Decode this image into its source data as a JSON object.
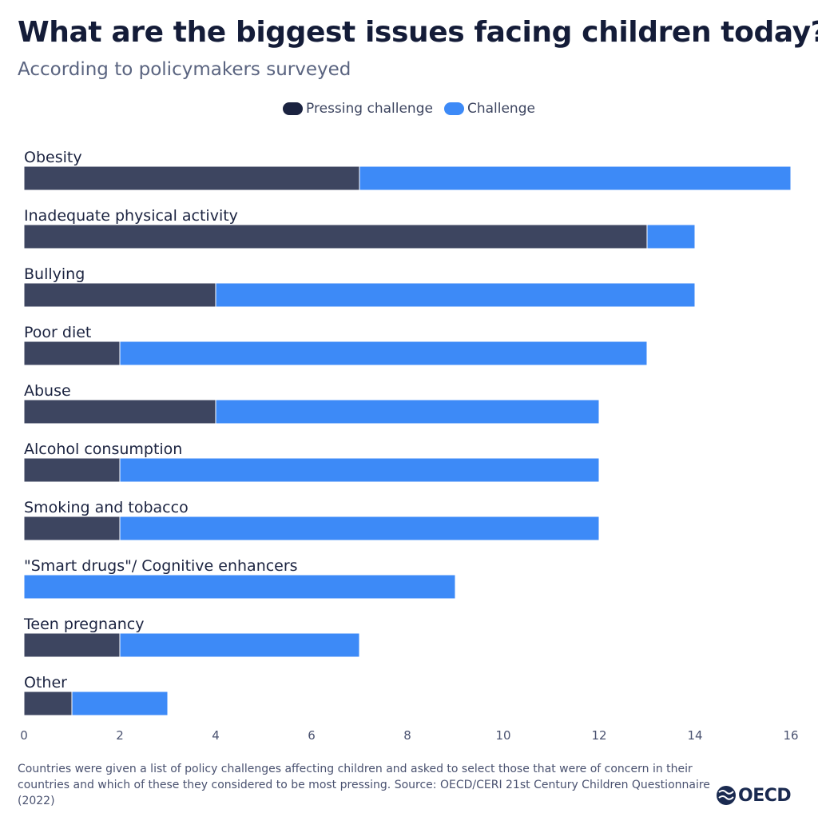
{
  "header": {
    "title": "What are the biggest issues facing children today?",
    "subtitle": "According to policymakers surveyed"
  },
  "colors": {
    "pressing": "#3d4560",
    "challenge": "#3d8af7",
    "pressing_swatch": "#1b2340"
  },
  "chart_data": {
    "type": "bar",
    "orientation": "horizontal",
    "stacked": true,
    "categories": [
      "Obesity",
      "Inadequate physical activity",
      "Bullying",
      "Poor diet",
      "Abuse",
      "Alcohol consumption",
      "Smoking and tobacco",
      "\"Smart drugs\"/ Cognitive enhancers",
      "Teen pregnancy",
      "Other"
    ],
    "series": [
      {
        "name": "Pressing challenge",
        "values": [
          7,
          13,
          4,
          2,
          4,
          2,
          2,
          0,
          2,
          1
        ]
      },
      {
        "name": "Challenge",
        "values": [
          9,
          1,
          10,
          11,
          8,
          10,
          10,
          9,
          5,
          2
        ]
      }
    ],
    "xlim": [
      0,
      16
    ],
    "xticks": [
      "0",
      "2",
      "4",
      "6",
      "8",
      "10",
      "12",
      "14",
      "16"
    ],
    "legend_position": "top-center",
    "grid": false
  },
  "footnote": "Countries were given a list of policy challenges affecting children and asked to select those that were of concern in their countries and which of these they considered to be most pressing. Source: OECD/CERI 21st Century Children Questionnaire (2022)",
  "logo": {
    "text": "OECD",
    "icon": "oecd-globe-icon"
  }
}
